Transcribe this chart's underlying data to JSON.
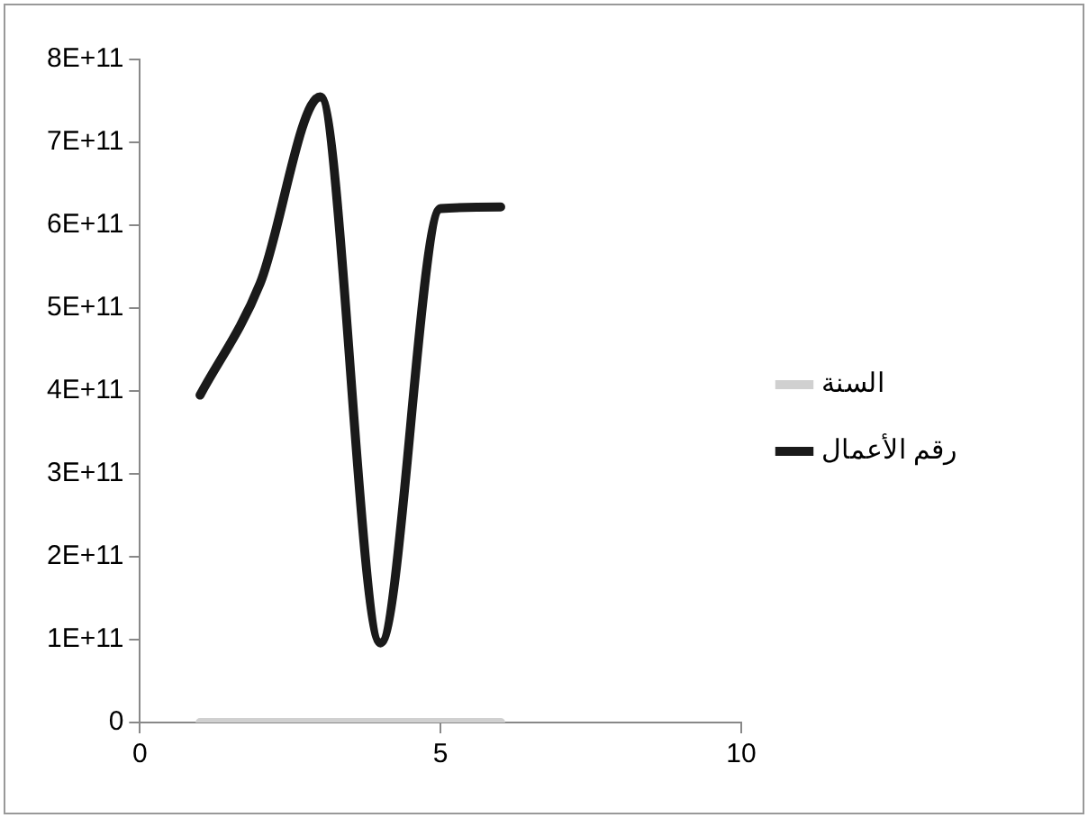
{
  "chart_data": {
    "type": "line",
    "x": [
      1,
      2,
      3,
      4,
      5,
      6
    ],
    "series": [
      {
        "name": "السنة",
        "color": "#d0d0d0",
        "values": [
          0,
          0,
          0,
          0,
          0,
          0
        ]
      },
      {
        "name": "رقم الأعمال",
        "color": "#1a1a1a",
        "values": [
          395000000000,
          530000000000,
          755000000000,
          96000000000,
          620000000000,
          622000000000
        ]
      }
    ],
    "xlim": [
      0,
      10
    ],
    "xticks": [
      0,
      5,
      10
    ],
    "ylim": [
      0,
      800000000000
    ],
    "yticks": [
      {
        "value": 0,
        "label": "0"
      },
      {
        "value": 100000000000,
        "label": "1E+11"
      },
      {
        "value": 200000000000,
        "label": "2E+11"
      },
      {
        "value": 300000000000,
        "label": "3E+11"
      },
      {
        "value": 400000000000,
        "label": "4E+11"
      },
      {
        "value": 500000000000,
        "label": "5E+11"
      },
      {
        "value": 600000000000,
        "label": "6E+11"
      },
      {
        "value": 700000000000,
        "label": "7E+11"
      },
      {
        "value": 800000000000,
        "label": "8E+11"
      }
    ],
    "grid": false,
    "legend": "right",
    "marker": "none",
    "line_style": "solid"
  }
}
